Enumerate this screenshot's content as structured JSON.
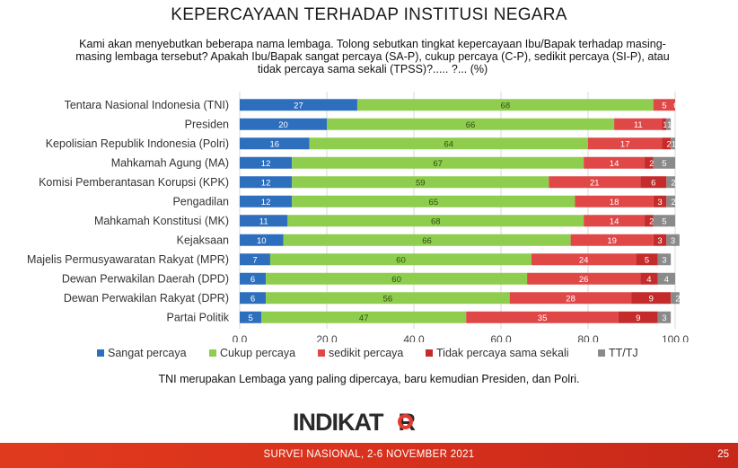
{
  "title": "KEPERCAYAAN TERHADAP INSTITUSI NEGARA",
  "question": "Kami akan menyebutkan beberapa nama lembaga. Tolong sebutkan tingkat kepercayaan Ibu/Bapak terhadap masing-masing lembaga tersebut? Apakah Ibu/Bapak sangat percaya (SA-P), cukup percaya (C-P), sedikit percaya (SI-P), atau tidak percaya sama sekali (TPSS)?..... ?... (%)",
  "conclusion": "TNI merupakan Lembaga yang paling dipercaya, baru kemudian Presiden, dan Polri.",
  "logo": {
    "text": "INDIKAT",
    "text_end": "R",
    "mark": "ring-o-mark"
  },
  "footer": {
    "survey": "SURVEI NASIONAL, 2-6 NOVEMBER 2021",
    "page": "25"
  },
  "chart_data": {
    "type": "bar",
    "orientation": "horizontal",
    "stacked": true,
    "xlim": [
      0,
      100
    ],
    "xticks": [
      "0.0",
      "20.0",
      "40.0",
      "60.0",
      "80.0",
      "100.0"
    ],
    "grid": true,
    "legend_position": "bottom",
    "categories": [
      "Tentara Nasional Indonesia (TNI)",
      "Presiden",
      "Kepolisian Republik Indonesia (Polri)",
      "Mahkamah Agung (MA)",
      "Komisi Pemberantasan Korupsi (KPK)",
      "Pengadilan",
      "Mahkamah Konstitusi (MK)",
      "Kejaksaan",
      "Majelis Permusyawaratan Rakyat (MPR)",
      "Dewan Perwakilan Daerah (DPD)",
      "Dewan Perwakilan Rakyat (DPR)",
      "Partai Politik"
    ],
    "series": [
      {
        "name": "Sangat percaya",
        "color": "#2e6fbd",
        "values": [
          27,
          20,
          16,
          12,
          12,
          12,
          11,
          10,
          7,
          6,
          6,
          5
        ]
      },
      {
        "name": "Cukup percaya",
        "color": "#8fcd4e",
        "values": [
          68,
          66,
          64,
          67,
          59,
          65,
          68,
          66,
          60,
          60,
          56,
          47
        ]
      },
      {
        "name": "sedikit percaya",
        "color": "#e04848",
        "values": [
          5,
          11,
          17,
          14,
          21,
          18,
          14,
          19,
          24,
          26,
          28,
          35
        ]
      },
      {
        "name": "Tidak percaya sama sekali",
        "color": "#c52b2b",
        "values": [
          0,
          1,
          2,
          2,
          6,
          3,
          2,
          3,
          5,
          4,
          9,
          9
        ]
      },
      {
        "name": "TT/TJ",
        "color": "#8a8a8a",
        "values": [
          0,
          1,
          1,
          5,
          2,
          2,
          5,
          3,
          3,
          4,
          2,
          3
        ]
      }
    ]
  }
}
